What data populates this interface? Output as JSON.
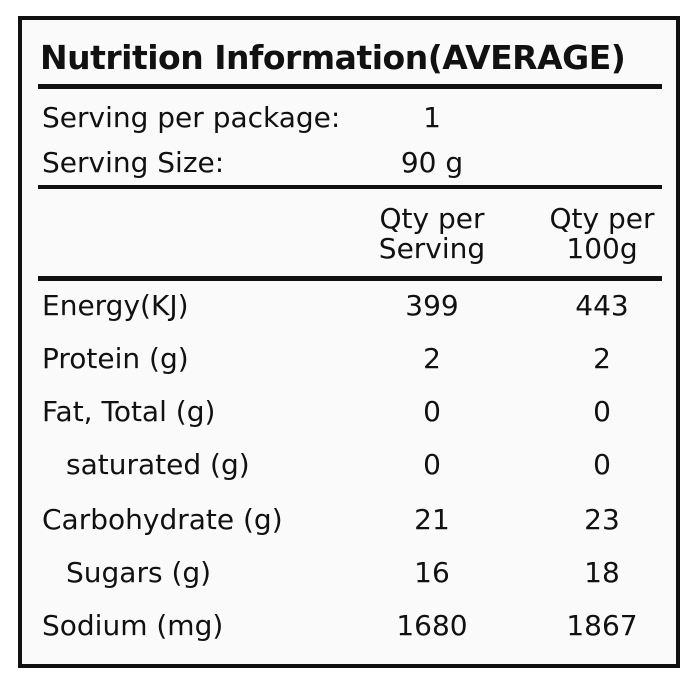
{
  "title": "Nutrition Information(AVERAGE)",
  "serving": {
    "per_package_label": "Serving per package:",
    "per_package_value": "1",
    "size_label": "Serving Size:",
    "size_value": "90 g"
  },
  "columns": {
    "per_serving_line1": "Qty per",
    "per_serving_line2": "Serving",
    "per_100g_line1": "Qty per",
    "per_100g_line2": "100g"
  },
  "rows": [
    {
      "label": "Energy(KJ)",
      "per_serving": "399",
      "per_100g": "443"
    },
    {
      "label": "Protein (g)",
      "per_serving": "2",
      "per_100g": "2"
    },
    {
      "label": "Fat, Total (g)",
      "per_serving": "0",
      "per_100g": "0"
    },
    {
      "label": "saturated (g)",
      "per_serving": "0",
      "per_100g": "0"
    },
    {
      "label": "Carbohydrate (g)",
      "per_serving": "21",
      "per_100g": "23"
    },
    {
      "label": "Sugars (g)",
      "per_serving": "16",
      "per_100g": "18"
    },
    {
      "label": "Sodium (mg)",
      "per_serving": "1680",
      "per_100g": "1867"
    }
  ]
}
